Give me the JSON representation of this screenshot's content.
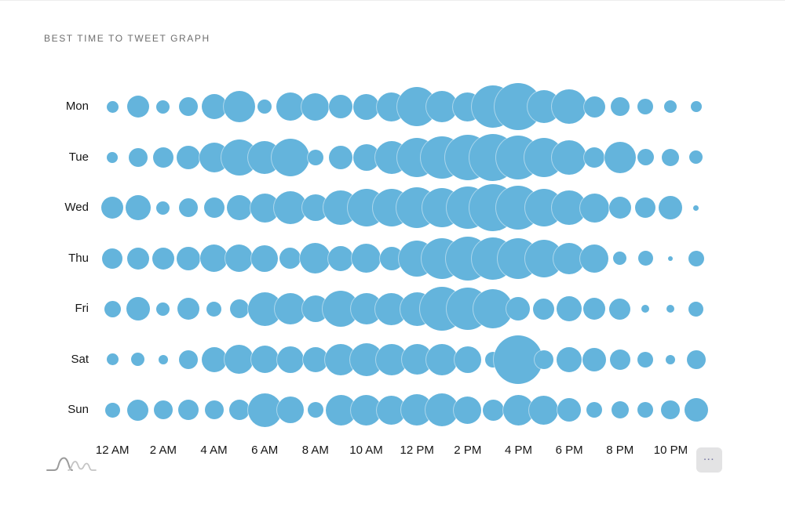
{
  "header": {
    "title": "BEST TIME TO TWEET GRAPH"
  },
  "footer": {
    "more_button_label": "···",
    "logo_name": "waveform-logo"
  },
  "chart_data": {
    "type": "scatter",
    "subtype": "bubble-grid",
    "title": "BEST TIME TO TWEET GRAPH",
    "xlabel": "",
    "ylabel": "",
    "grid": false,
    "legend": "none",
    "bubble_color": "#64b4dc",
    "axis_text_color": "#161616",
    "days": [
      "Mon",
      "Tue",
      "Wed",
      "Thu",
      "Fri",
      "Sat",
      "Sun"
    ],
    "hours": [
      "12 AM",
      "1 AM",
      "2 AM",
      "3 AM",
      "4 AM",
      "5 AM",
      "6 AM",
      "7 AM",
      "8 AM",
      "9 AM",
      "10 AM",
      "11 AM",
      "12 PM",
      "1 PM",
      "2 PM",
      "3 PM",
      "4 PM",
      "5 PM",
      "6 PM",
      "7 PM",
      "8 PM",
      "9 PM",
      "10 PM",
      "11 PM"
    ],
    "x_tick_labels": [
      "12 AM",
      "2 AM",
      "4 AM",
      "6 AM",
      "8 AM",
      "10 AM",
      "12 PM",
      "2 PM",
      "4 PM",
      "6 PM",
      "8 PM",
      "10 PM"
    ],
    "radius_unit": "px (relative tweet-activity size)",
    "series": [
      {
        "name": "Mon",
        "radii": [
          7.5,
          14,
          8.5,
          12,
          16,
          20,
          9,
          18,
          17.5,
          15,
          16.5,
          18.5,
          25,
          20,
          18.5,
          27,
          30,
          21,
          22,
          13.5,
          12,
          10,
          8,
          7
        ]
      },
      {
        "name": "Tue",
        "radii": [
          7,
          12,
          13,
          15,
          19,
          23,
          21,
          24,
          10,
          15,
          17,
          21,
          25,
          27,
          29,
          30,
          28,
          25,
          22,
          13,
          20,
          10.5,
          11,
          8.5
        ]
      },
      {
        "name": "Wed",
        "radii": [
          14,
          16,
          8.5,
          12,
          13,
          16,
          18.5,
          21,
          17,
          22,
          24,
          24,
          26,
          25,
          27,
          30,
          28,
          24,
          22,
          18.5,
          14,
          13,
          15,
          3.5
        ]
      },
      {
        "name": "Thu",
        "radii": [
          13,
          14,
          14,
          15,
          17.5,
          17.5,
          17,
          13.5,
          19.5,
          16,
          18.5,
          15,
          23,
          26,
          28,
          27,
          26,
          24,
          20,
          18,
          8.5,
          9.5,
          3,
          10
        ]
      },
      {
        "name": "Fri",
        "radii": [
          10.5,
          15,
          8.5,
          14,
          9.5,
          12,
          21.5,
          20,
          17,
          23,
          20,
          20.5,
          21.5,
          28,
          27,
          25,
          15,
          13.5,
          16,
          14,
          13.5,
          5,
          5,
          9.5
        ]
      },
      {
        "name": "Sat",
        "radii": [
          7.5,
          8.5,
          6,
          12,
          16,
          18.5,
          17.5,
          17,
          16,
          20,
          21,
          20,
          19.5,
          20,
          17,
          10,
          31,
          12,
          16,
          15,
          13,
          10,
          6,
          12
        ]
      },
      {
        "name": "Sun",
        "radii": [
          9.5,
          13.5,
          12,
          13,
          12,
          13,
          21.5,
          17,
          10,
          19.5,
          19.5,
          18.5,
          20,
          21,
          17.5,
          13.5,
          19.5,
          18.5,
          15,
          10,
          11,
          10,
          12,
          15
        ]
      }
    ]
  }
}
